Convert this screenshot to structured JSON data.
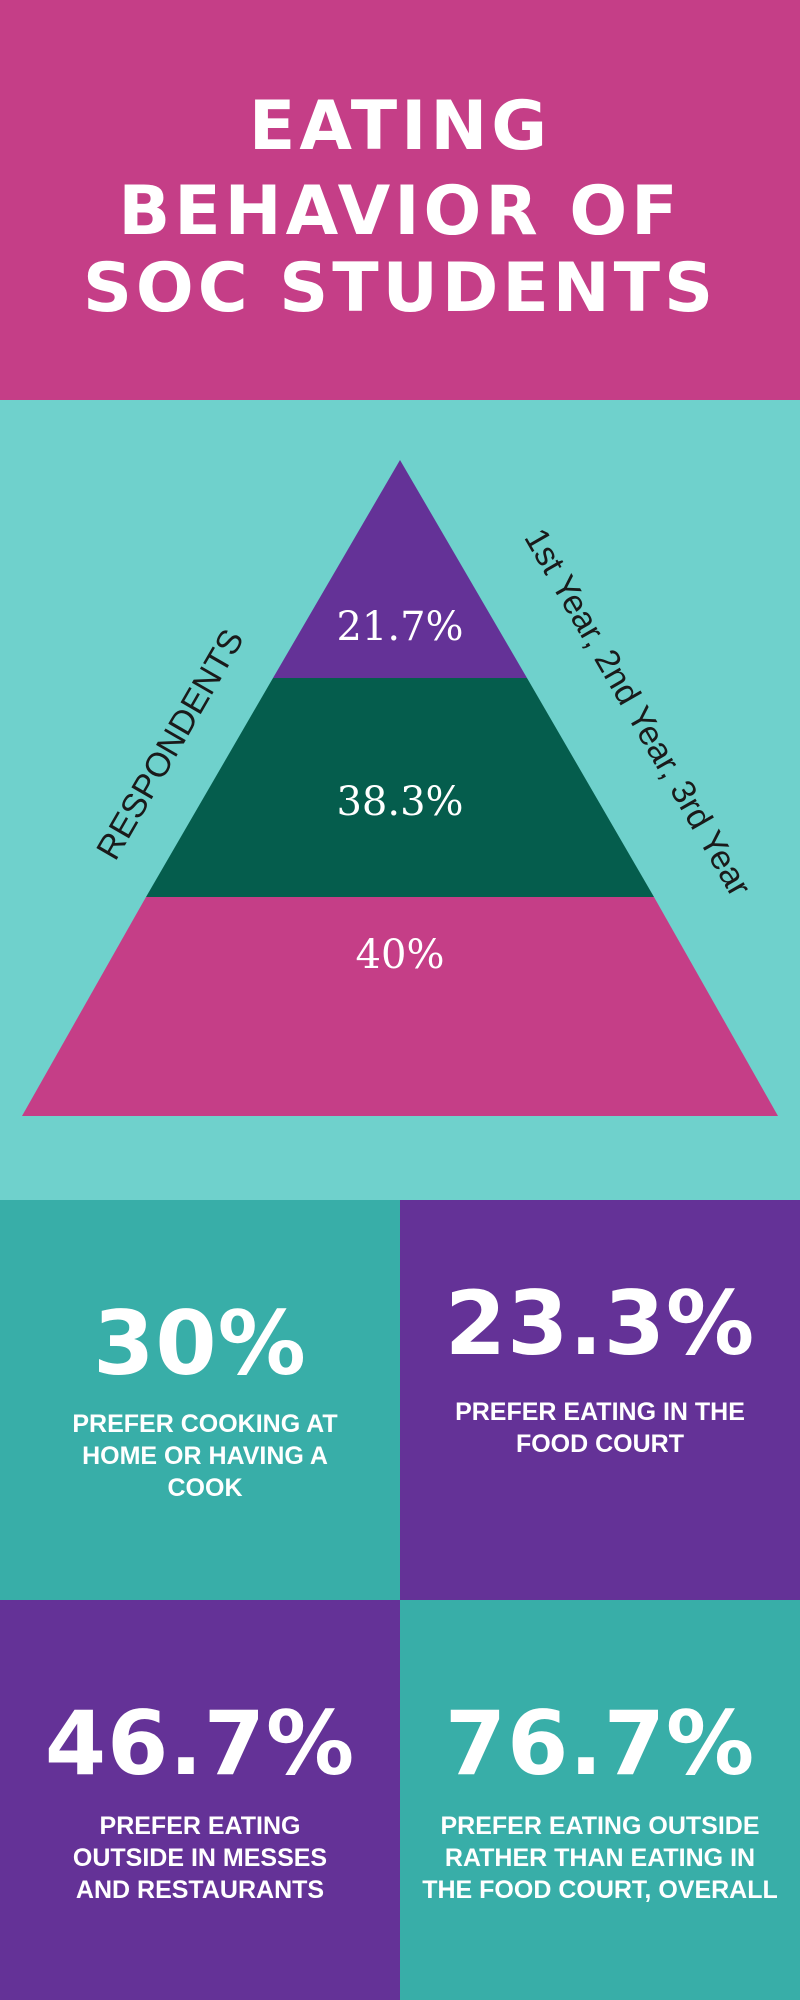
{
  "header": {
    "title_lines": [
      "EATING",
      "BEHAVIOR OF",
      "SOC STUDENTS"
    ]
  },
  "pyramid": {
    "left_label": "RESPONDENTS",
    "right_label": "1st Year, 2nd Year, 3rd Year",
    "tiers": [
      {
        "value": "21.7%",
        "color": "#643297"
      },
      {
        "value": "38.3%",
        "color": "#055d4d"
      },
      {
        "value": "40%",
        "color": "#c53e87"
      }
    ]
  },
  "stats": [
    {
      "value": "30%",
      "description": "PREFER COOKING AT HOME OR HAVING A COOK"
    },
    {
      "value": "23.3%",
      "description": "PREFER EATING IN THE FOOD COURT"
    },
    {
      "value": "46.7%",
      "description": "PREFER EATING OUTSIDE IN MESSES AND RESTAURANTS"
    },
    {
      "value": "76.7%",
      "description": "PREFER EATING OUTSIDE RATHER THAN EATING IN THE FOOD COURT, OVERALL"
    }
  ],
  "colors": {
    "magenta": "#c53e87",
    "teal_light": "#6fd1cc",
    "teal": "#38aea8",
    "purple": "#643297",
    "dark_green": "#055d4d"
  }
}
